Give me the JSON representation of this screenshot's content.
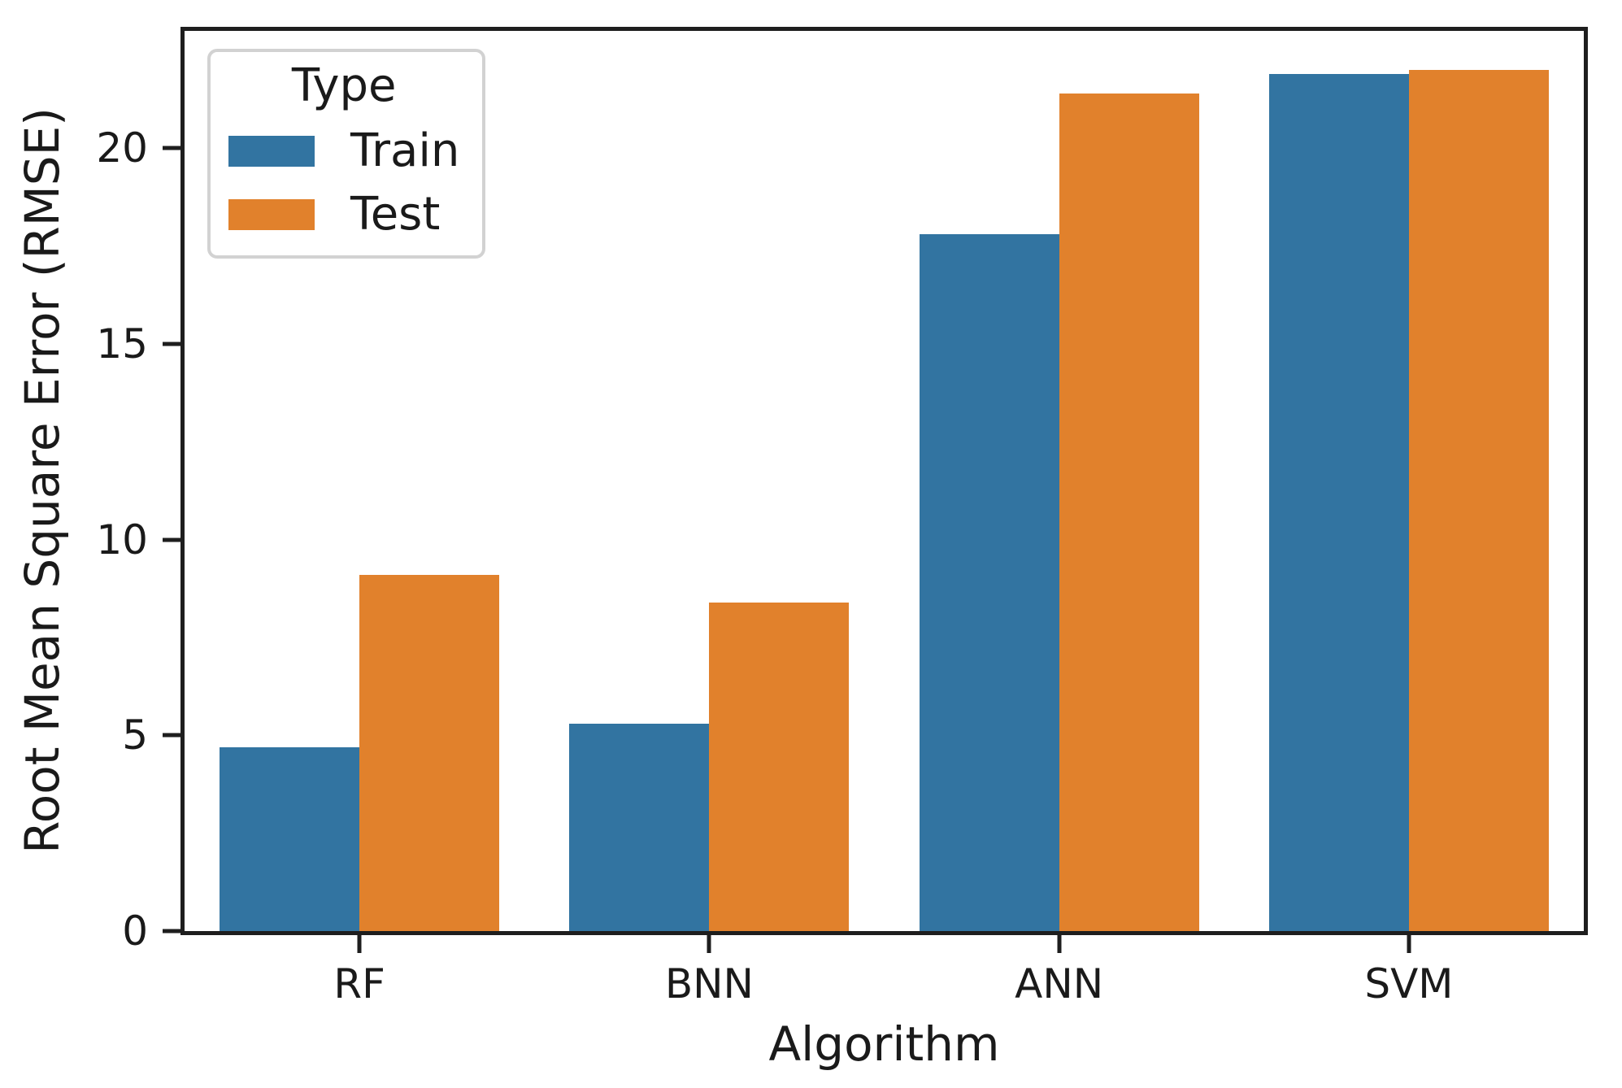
{
  "figure": {
    "background": "#ffffff"
  },
  "chart_data": {
    "type": "bar",
    "title": "",
    "xlabel": "Algorithm",
    "ylabel": "Root Mean Square Error (RMSE)",
    "categories": [
      "RF",
      "BNN",
      "ANN",
      "SVM"
    ],
    "series": [
      {
        "name": "Train",
        "color": "#3274a1",
        "values": [
          4.7,
          5.3,
          17.8,
          21.9
        ]
      },
      {
        "name": "Test",
        "color": "#e1812c",
        "values": [
          9.1,
          8.4,
          21.4,
          22.0
        ]
      }
    ],
    "ylim": [
      0,
      23
    ],
    "yticks": [
      0,
      5,
      10,
      15,
      20
    ],
    "bar_group_width": 0.8,
    "grid": false,
    "legend": {
      "title": "Type",
      "position": "upper-left"
    }
  },
  "colors": {
    "spine": "#1e1e1e",
    "text": "#1a1a1a",
    "legend_border": "#d2d2d2",
    "train": "#3274a1",
    "test": "#e1812c"
  }
}
